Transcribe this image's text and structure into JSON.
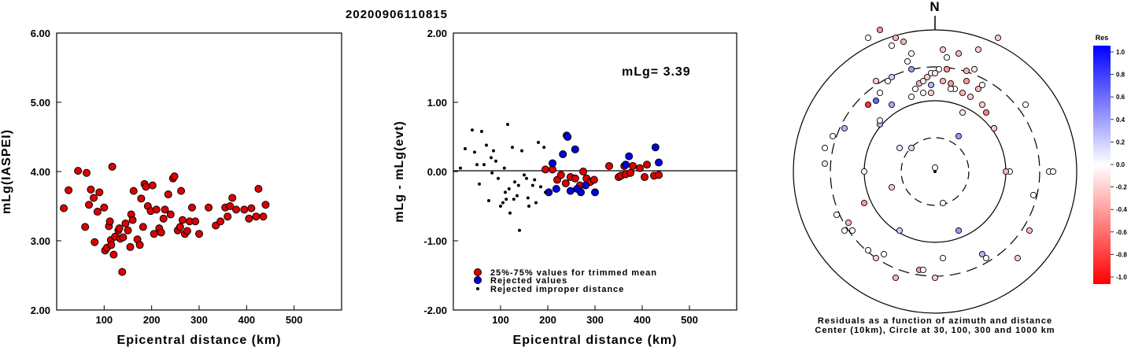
{
  "title": "20200906110815",
  "chart_data": [
    {
      "type": "scatter",
      "xlabel": "Epicentral distance (km)",
      "ylabel": "mLg(IASPEI)",
      "xlim": [
        0,
        600
      ],
      "ylim": [
        2.0,
        6.0
      ],
      "xticks": [
        "100",
        "200",
        "300",
        "400",
        "500"
      ],
      "yticks": [
        "2.00",
        "3.00",
        "4.00",
        "5.00",
        "6.00"
      ],
      "points": [
        [
          15,
          3.47
        ],
        [
          25,
          3.73
        ],
        [
          45,
          4.01
        ],
        [
          60,
          3.2
        ],
        [
          63,
          3.98
        ],
        [
          68,
          3.52
        ],
        [
          72,
          3.74
        ],
        [
          78,
          3.62
        ],
        [
          80,
          2.98
        ],
        [
          86,
          3.42
        ],
        [
          90,
          3.7
        ],
        [
          100,
          3.48
        ],
        [
          102,
          2.86
        ],
        [
          106,
          2.9
        ],
        [
          110,
          3.21
        ],
        [
          112,
          3.28
        ],
        [
          114,
          3.01
        ],
        [
          115,
          2.94
        ],
        [
          117,
          4.07
        ],
        [
          120,
          2.8
        ],
        [
          123,
          3.06
        ],
        [
          130,
          3.15
        ],
        [
          132,
          3.18
        ],
        [
          134,
          3.03
        ],
        [
          138,
          2.55
        ],
        [
          140,
          3.05
        ],
        [
          145,
          3.25
        ],
        [
          150,
          3.15
        ],
        [
          155,
          2.91
        ],
        [
          157,
          3.38
        ],
        [
          160,
          3.3
        ],
        [
          162,
          3.72
        ],
        [
          170,
          3.02
        ],
        [
          175,
          2.94
        ],
        [
          178,
          3.61
        ],
        [
          182,
          3.2
        ],
        [
          185,
          3.82
        ],
        [
          188,
          3.78
        ],
        [
          192,
          3.5
        ],
        [
          198,
          3.43
        ],
        [
          202,
          3.8
        ],
        [
          205,
          3.1
        ],
        [
          210,
          3.45
        ],
        [
          216,
          3.18
        ],
        [
          220,
          3.12
        ],
        [
          225,
          3.32
        ],
        [
          228,
          3.45
        ],
        [
          235,
          3.67
        ],
        [
          240,
          3.38
        ],
        [
          245,
          3.9
        ],
        [
          248,
          3.93
        ],
        [
          255,
          3.15
        ],
        [
          260,
          3.2
        ],
        [
          262,
          3.72
        ],
        [
          265,
          3.3
        ],
        [
          270,
          3.1
        ],
        [
          275,
          3.14
        ],
        [
          280,
          3.28
        ],
        [
          285,
          3.48
        ],
        [
          292,
          3.28
        ],
        [
          300,
          3.1
        ],
        [
          320,
          3.48
        ],
        [
          335,
          3.22
        ],
        [
          345,
          3.28
        ],
        [
          355,
          3.48
        ],
        [
          360,
          3.35
        ],
        [
          365,
          3.5
        ],
        [
          370,
          3.62
        ],
        [
          378,
          3.45
        ],
        [
          395,
          3.45
        ],
        [
          405,
          3.32
        ],
        [
          410,
          3.47
        ],
        [
          420,
          3.35
        ],
        [
          425,
          3.75
        ],
        [
          435,
          3.35
        ],
        [
          440,
          3.52
        ]
      ]
    },
    {
      "type": "scatter",
      "xlabel": "Epicentral distance (km)",
      "ylabel": "mLg - mLg(evt)",
      "xlim": [
        0,
        600
      ],
      "ylim": [
        -2.0,
        2.0
      ],
      "xticks": [
        "100",
        "200",
        "300",
        "400",
        "500"
      ],
      "yticks": [
        "-2.00",
        "-1.00",
        "0.00",
        "1.00",
        "2.00"
      ],
      "annotation": "mLg= 3.39",
      "legend": [
        {
          "label": "25%-75% values for trimmed mean",
          "marker": "red-circle"
        },
        {
          "label": "Rejected values",
          "marker": "blue-circle"
        },
        {
          "label": "Rejected improper distance",
          "marker": "black-dot"
        }
      ],
      "series": [
        {
          "marker": "red-circle",
          "color": "#dd0000",
          "points": [
            [
              195,
              0.03
            ],
            [
              210,
              0.03
            ],
            [
              220,
              -0.12
            ],
            [
              228,
              -0.05
            ],
            [
              238,
              -0.17
            ],
            [
              248,
              -0.08
            ],
            [
              258,
              -0.1
            ],
            [
              268,
              -0.2
            ],
            [
              275,
              0.0
            ],
            [
              282,
              -0.1
            ],
            [
              290,
              -0.15
            ],
            [
              298,
              -0.12
            ],
            [
              330,
              0.08
            ],
            [
              350,
              -0.08
            ],
            [
              355,
              -0.06
            ],
            [
              362,
              0.08
            ],
            [
              365,
              -0.04
            ],
            [
              375,
              -0.02
            ],
            [
              380,
              0.08
            ],
            [
              395,
              0.05
            ],
            [
              405,
              -0.08
            ],
            [
              410,
              0.1
            ],
            [
              425,
              -0.06
            ],
            [
              435,
              -0.05
            ]
          ]
        },
        {
          "marker": "blue-circle",
          "color": "#0000dd",
          "points": [
            [
              202,
              -0.3
            ],
            [
              210,
              0.12
            ],
            [
              218,
              -0.25
            ],
            [
              232,
              0.25
            ],
            [
              240,
              0.52
            ],
            [
              242,
              0.5
            ],
            [
              248,
              -0.28
            ],
            [
              258,
              0.32
            ],
            [
              262,
              -0.25
            ],
            [
              270,
              -0.3
            ],
            [
              280,
              -0.2
            ],
            [
              300,
              -0.3
            ],
            [
              365,
              0.1
            ],
            [
              372,
              0.22
            ],
            [
              428,
              0.35
            ],
            [
              435,
              0.13
            ]
          ]
        },
        {
          "marker": "black-dot",
          "color": "#000000",
          "points": [
            [
              15,
              0.05
            ],
            [
              25,
              0.33
            ],
            [
              40,
              0.6
            ],
            [
              45,
              0.28
            ],
            [
              50,
              0.1
            ],
            [
              55,
              -0.18
            ],
            [
              60,
              0.58
            ],
            [
              65,
              0.1
            ],
            [
              70,
              0.38
            ],
            [
              75,
              -0.42
            ],
            [
              80,
              0.2
            ],
            [
              82,
              -0.02
            ],
            [
              85,
              0.3
            ],
            [
              90,
              0.15
            ],
            [
              95,
              -0.1
            ],
            [
              100,
              -0.5
            ],
            [
              105,
              -0.45
            ],
            [
              108,
              0.05
            ],
            [
              110,
              -0.3
            ],
            [
              112,
              -0.4
            ],
            [
              115,
              0.68
            ],
            [
              118,
              -0.25
            ],
            [
              120,
              -0.6
            ],
            [
              125,
              0.35
            ],
            [
              128,
              -0.4
            ],
            [
              130,
              -0.15
            ],
            [
              135,
              -0.35
            ],
            [
              138,
              -0.2
            ],
            [
              140,
              -0.85
            ],
            [
              145,
              0.3
            ],
            [
              150,
              -0.05
            ],
            [
              155,
              -0.1
            ],
            [
              158,
              -0.38
            ],
            [
              160,
              -0.5
            ],
            [
              168,
              -0.2
            ],
            [
              172,
              -0.12
            ],
            [
              175,
              -0.45
            ],
            [
              180,
              0.42
            ],
            [
              185,
              -0.22
            ],
            [
              192,
              0.35
            ],
            [
              195,
              -0.3
            ]
          ]
        }
      ]
    },
    {
      "type": "scatter",
      "subtype": "polar",
      "north_label": "N",
      "caption_line1": "Residuals as a function of azimuth and distance",
      "caption_line2": "Center (10km), Circle at 30, 100, 300 and 1000 km",
      "rings_km": [
        30,
        100,
        300,
        1000
      ],
      "colorbar": {
        "title": "Res",
        "ticks": [
          "1.0",
          "0.8",
          "0.6",
          "0.4",
          "0.2",
          "0.0",
          "-0.2",
          "-0.4",
          "-0.6",
          "-0.8",
          "-1.0"
        ],
        "range": [
          -1.0,
          1.0
        ],
        "high_color": "#0000ff",
        "low_color": "#ff0000"
      },
      "points": [
        [
          0,
          -5,
          0.0
        ],
        [
          10,
          40,
          0.0
        ],
        [
          -30,
          -30,
          0.15
        ],
        [
          -45,
          -30,
          0.1
        ],
        [
          30,
          -45,
          0.4
        ],
        [
          -70,
          -60,
          0.3
        ],
        [
          -90,
          0,
          0.0
        ],
        [
          95,
          0,
          0.0
        ],
        [
          -55,
          -85,
          0.35
        ],
        [
          35,
          -75,
          -0.1
        ],
        [
          -65,
          105,
          0.0
        ],
        [
          -5,
          -125,
          0.0
        ],
        [
          -60,
          -115,
          0.0
        ],
        [
          -55,
          20,
          -0.2
        ],
        [
          -90,
          40,
          -0.4
        ],
        [
          -30,
          -150,
          0.0
        ],
        [
          10,
          -155,
          -0.2
        ],
        [
          30,
          -150,
          -0.3
        ],
        [
          55,
          -155,
          -0.2
        ],
        [
          80,
          -170,
          -0.2
        ],
        [
          -40,
          -165,
          -0.3
        ],
        [
          -70,
          -180,
          -0.4
        ],
        [
          -85,
          -170,
          0.0
        ],
        [
          -55,
          -160,
          0.0
        ],
        [
          -50,
          -170,
          -0.3
        ],
        [
          -70,
          -65,
          0.0
        ],
        [
          -75,
          -90,
          0.6
        ],
        [
          -30,
          -95,
          0.0
        ],
        [
          5,
          -130,
          0.0
        ],
        [
          -10,
          -120,
          -0.2
        ],
        [
          -15,
          -100,
          0.0
        ],
        [
          10,
          -115,
          -0.3
        ],
        [
          40,
          -115,
          -0.4
        ],
        [
          55,
          -105,
          -0.3
        ],
        [
          60,
          -85,
          -0.2
        ],
        [
          65,
          -75,
          -0.5
        ],
        [
          75,
          -55,
          -0.6
        ],
        [
          90,
          0,
          -0.3
        ],
        [
          -20,
          -112,
          -0.3
        ],
        [
          -25,
          -105,
          0.0
        ],
        [
          15,
          -130,
          -0.1
        ],
        [
          25,
          -105,
          0.0
        ],
        [
          35,
          -100,
          -0.3
        ],
        [
          20,
          -112,
          -0.4
        ],
        [
          -140,
          -30,
          0.0
        ],
        [
          -140,
          -10,
          0.1
        ],
        [
          -130,
          -45,
          0.0
        ],
        [
          -115,
          -55,
          0.3
        ],
        [
          -125,
          55,
          0.0
        ],
        [
          -115,
          75,
          0.0
        ],
        [
          -105,
          75,
          0.0
        ],
        [
          -110,
          65,
          -0.3
        ],
        [
          -85,
          100,
          0.0
        ],
        [
          -75,
          110,
          -0.2
        ],
        [
          -45,
          75,
          0.2
        ],
        [
          -20,
          125,
          -0.4
        ],
        [
          -15,
          125,
          0.0
        ],
        [
          0,
          135,
          -0.2
        ],
        [
          -50,
          135,
          -0.3
        ],
        [
          10,
          110,
          0.0
        ],
        [
          30,
          75,
          0.4
        ],
        [
          60,
          105,
          0.3
        ],
        [
          65,
          110,
          0.0
        ],
        [
          105,
          110,
          -0.2
        ],
        [
          120,
          75,
          -0.3
        ],
        [
          125,
          30,
          0.0
        ],
        [
          145,
          0,
          0.0
        ],
        [
          150,
          0,
          0.0
        ],
        [
          115,
          -85,
          0.0
        ],
        [
          75,
          -55,
          -0.2
        ],
        [
          -55,
          -120,
          0.2
        ],
        [
          -70,
          -100,
          0.0
        ],
        [
          -75,
          -115,
          -0.2
        ],
        [
          -35,
          -140,
          0.0
        ],
        [
          -30,
          -130,
          0.4
        ],
        [
          -5,
          -110,
          0.3
        ],
        [
          -85,
          -85,
          -0.8
        ],
        [
          0,
          -125,
          -0.1
        ],
        [
          40,
          -128,
          -0.3
        ],
        [
          15,
          -145,
          0.0
        ],
        [
          -15,
          -115,
          -0.1
        ],
        [
          50,
          -130,
          -0.1
        ],
        [
          15,
          -130,
          -0.4
        ],
        [
          60,
          -110,
          0.0
        ],
        [
          -5,
          -100,
          -0.2
        ],
        [
          45,
          -95,
          -0.2
        ],
        [
          20,
          -105,
          0.0
        ]
      ]
    }
  ]
}
